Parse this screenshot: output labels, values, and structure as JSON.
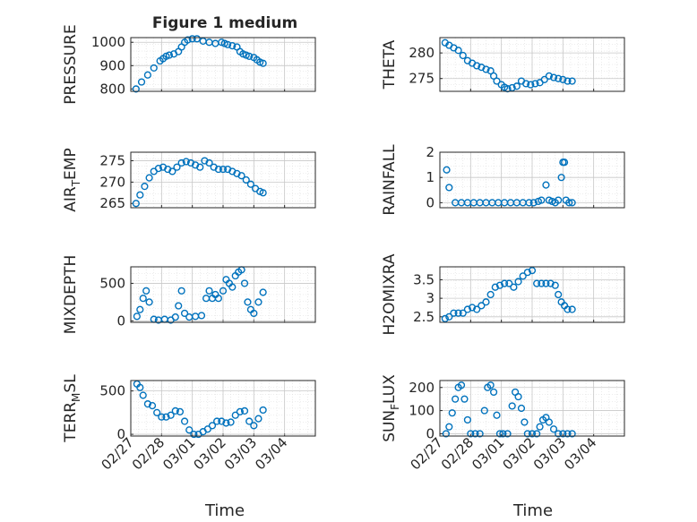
{
  "figure": {
    "title": "Figure 1 medium",
    "x_axis_label": "Time",
    "x_tick_labels": [
      "02/27",
      "02/28",
      "03/01",
      "03/02",
      "03/03",
      "03/04"
    ]
  },
  "colors": {
    "series": "#0072BD",
    "axis": "#262626",
    "grid": "#c8c8c8",
    "background": "#ffffff"
  },
  "chart_data": [
    {
      "type": "scatter",
      "ylabel": "PRESSURE",
      "ylim": [
        790,
        1020
      ],
      "yticks": [
        800,
        900,
        1000
      ],
      "xlim": [
        0,
        6
      ],
      "x": [
        0.17,
        0.35,
        0.55,
        0.75,
        0.95,
        1.05,
        1.15,
        1.25,
        1.4,
        1.55,
        1.65,
        1.75,
        1.85,
        2.0,
        2.15,
        2.35,
        2.55,
        2.75,
        2.95,
        3.05,
        3.15,
        3.3,
        3.45,
        3.55,
        3.65,
        3.75,
        3.85,
        4.0,
        4.1,
        4.2,
        4.3
      ],
      "y": [
        800,
        830,
        860,
        890,
        920,
        930,
        940,
        945,
        950,
        960,
        980,
        1000,
        1010,
        1015,
        1015,
        1005,
        1000,
        995,
        1000,
        995,
        990,
        985,
        980,
        960,
        950,
        945,
        940,
        935,
        925,
        915,
        910
      ]
    },
    {
      "type": "scatter",
      "ylabel": "THETA",
      "ylim": [
        272.5,
        283
      ],
      "yticks": [
        275,
        280
      ],
      "xlim": [
        0,
        6
      ],
      "x": [
        0.17,
        0.3,
        0.45,
        0.6,
        0.75,
        0.9,
        1.05,
        1.2,
        1.35,
        1.5,
        1.65,
        1.75,
        1.85,
        2.0,
        2.1,
        2.2,
        2.35,
        2.5,
        2.65,
        2.8,
        2.95,
        3.1,
        3.25,
        3.4,
        3.55,
        3.7,
        3.85,
        4.0,
        4.15,
        4.3
      ],
      "y": [
        282,
        281.5,
        281,
        280.5,
        279.5,
        278.5,
        278,
        277.5,
        277.2,
        276.8,
        276.5,
        275.5,
        274.5,
        273.8,
        273.3,
        273,
        273.2,
        273.5,
        274.5,
        274,
        273.8,
        274,
        274.2,
        274.8,
        275.5,
        275.2,
        275,
        274.8,
        274.5,
        274.5
      ]
    },
    {
      "type": "scatter",
      "ylabel": "AIR_TEMP",
      "ylim": [
        264,
        277
      ],
      "yticks": [
        265,
        270,
        275
      ],
      "xlim": [
        0,
        6
      ],
      "x": [
        0.17,
        0.3,
        0.45,
        0.6,
        0.75,
        0.9,
        1.05,
        1.2,
        1.35,
        1.5,
        1.65,
        1.8,
        1.95,
        2.1,
        2.25,
        2.4,
        2.55,
        2.7,
        2.85,
        3.0,
        3.15,
        3.3,
        3.45,
        3.6,
        3.75,
        3.9,
        4.05,
        4.2,
        4.3
      ],
      "y": [
        265,
        267,
        269,
        271,
        272.5,
        273.2,
        273.5,
        273,
        272.5,
        273.5,
        274.5,
        274.8,
        274.5,
        274,
        273.5,
        275,
        274.5,
        273.5,
        273,
        273,
        273,
        272.5,
        272,
        271.5,
        270.5,
        269.5,
        268.5,
        267.8,
        267.5
      ]
    },
    {
      "type": "scatter",
      "ylabel": "RAINFALL",
      "ylim": [
        -0.2,
        2
      ],
      "yticks": [
        0,
        1,
        2
      ],
      "xlim": [
        0,
        6
      ],
      "x": [
        0.22,
        0.3,
        0.5,
        0.7,
        0.9,
        1.1,
        1.3,
        1.5,
        1.7,
        1.9,
        2.1,
        2.3,
        2.5,
        2.7,
        2.9,
        3.05,
        3.2,
        3.3,
        3.45,
        3.55,
        3.65,
        3.75,
        3.85,
        3.95,
        4.0,
        4.05,
        4.1,
        4.2,
        4.3
      ],
      "y": [
        1.3,
        0.6,
        0,
        0,
        0,
        0,
        0,
        0,
        0,
        0,
        0,
        0,
        0,
        0,
        0,
        0,
        0.05,
        0.1,
        0.7,
        0.1,
        0.05,
        0,
        0.1,
        1.0,
        1.6,
        1.6,
        0.1,
        0,
        0
      ]
    },
    {
      "type": "scatter",
      "ylabel": "MIXDEPTH",
      "ylim": [
        -20,
        720
      ],
      "yticks": [
        0,
        500
      ],
      "xlim": [
        0,
        6
      ],
      "x": [
        0.2,
        0.3,
        0.4,
        0.5,
        0.6,
        0.75,
        0.9,
        1.1,
        1.3,
        1.45,
        1.55,
        1.65,
        1.75,
        1.9,
        2.1,
        2.3,
        2.45,
        2.55,
        2.65,
        2.75,
        2.85,
        3.0,
        3.1,
        3.2,
        3.3,
        3.4,
        3.5,
        3.6,
        3.7,
        3.8,
        3.9,
        4.0,
        4.15,
        4.3
      ],
      "y": [
        60,
        150,
        300,
        400,
        250,
        20,
        10,
        20,
        10,
        50,
        200,
        400,
        100,
        50,
        60,
        70,
        300,
        400,
        300,
        350,
        300,
        400,
        550,
        500,
        450,
        600,
        650,
        680,
        500,
        250,
        150,
        100,
        250,
        380
      ]
    },
    {
      "type": "scatter",
      "ylabel": "H2OMIXRA",
      "ylim": [
        2.35,
        3.85
      ],
      "yticks": [
        2.5,
        3,
        3.5
      ],
      "xlim": [
        0,
        6
      ],
      "x": [
        0.17,
        0.3,
        0.45,
        0.6,
        0.75,
        0.9,
        1.05,
        1.2,
        1.35,
        1.5,
        1.65,
        1.8,
        1.95,
        2.1,
        2.25,
        2.4,
        2.55,
        2.7,
        2.85,
        3.0,
        3.15,
        3.3,
        3.45,
        3.6,
        3.75,
        3.85,
        3.95,
        4.05,
        4.15,
        4.3
      ],
      "y": [
        2.45,
        2.5,
        2.6,
        2.6,
        2.6,
        2.7,
        2.75,
        2.7,
        2.8,
        2.9,
        3.1,
        3.3,
        3.35,
        3.4,
        3.4,
        3.3,
        3.45,
        3.6,
        3.7,
        3.75,
        3.4,
        3.4,
        3.4,
        3.4,
        3.35,
        3.1,
        2.9,
        2.8,
        2.7,
        2.7
      ]
    },
    {
      "type": "scatter",
      "ylabel": "TERR_MSL",
      "ylim": [
        -20,
        620
      ],
      "yticks": [
        0,
        500
      ],
      "xlim": [
        0,
        6
      ],
      "x": [
        0.2,
        0.3,
        0.4,
        0.55,
        0.7,
        0.85,
        1.0,
        1.15,
        1.3,
        1.45,
        1.6,
        1.75,
        1.9,
        2.05,
        2.2,
        2.35,
        2.5,
        2.65,
        2.8,
        2.95,
        3.1,
        3.25,
        3.4,
        3.55,
        3.7,
        3.85,
        4.0,
        4.15,
        4.3
      ],
      "y": [
        580,
        540,
        450,
        350,
        330,
        250,
        200,
        200,
        220,
        270,
        260,
        150,
        50,
        0,
        0,
        30,
        60,
        100,
        150,
        150,
        130,
        140,
        220,
        260,
        270,
        150,
        100,
        180,
        280
      ]
    },
    {
      "type": "scatter",
      "ylabel": "SUN_FLUX",
      "ylim": [
        -10,
        230
      ],
      "yticks": [
        0,
        100,
        200
      ],
      "xlim": [
        0,
        6
      ],
      "x": [
        0.2,
        0.3,
        0.4,
        0.5,
        0.6,
        0.7,
        0.8,
        0.9,
        1.0,
        1.15,
        1.3,
        1.45,
        1.55,
        1.65,
        1.75,
        1.85,
        1.95,
        2.05,
        2.2,
        2.35,
        2.45,
        2.55,
        2.65,
        2.75,
        2.85,
        3.0,
        3.15,
        3.25,
        3.35,
        3.45,
        3.55,
        3.7,
        3.85,
        4.0,
        4.15,
        4.3
      ],
      "y": [
        0,
        30,
        90,
        150,
        200,
        210,
        150,
        60,
        0,
        0,
        0,
        100,
        200,
        210,
        180,
        80,
        0,
        0,
        0,
        120,
        180,
        160,
        110,
        50,
        0,
        0,
        0,
        30,
        60,
        70,
        50,
        20,
        0,
        0,
        0,
        0
      ]
    }
  ]
}
